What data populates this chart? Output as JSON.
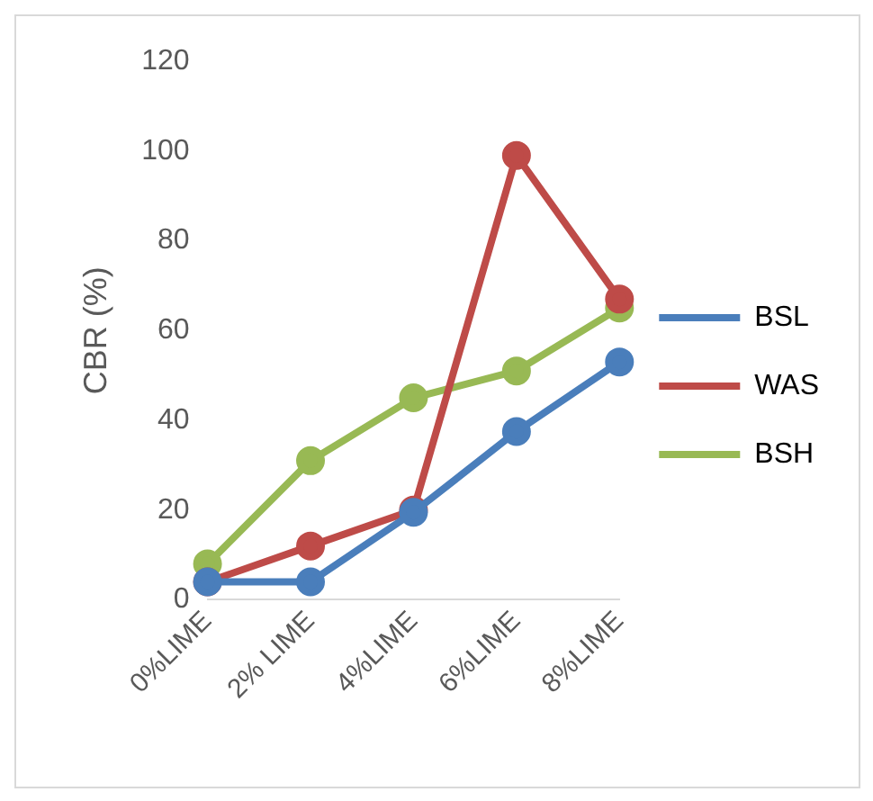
{
  "chart_data": {
    "type": "line",
    "ylabel": "CBR (%)",
    "categories": [
      "0%LIME",
      "2% LIME",
      "4%LIME",
      "6%LIME",
      "8%LIME"
    ],
    "series": [
      {
        "name": "BSL",
        "color": "#4a7ebb",
        "values": [
          4,
          4,
          19.5,
          37.5,
          53
        ]
      },
      {
        "name": "WAS",
        "color": "#be4b48",
        "values": [
          4,
          12,
          20,
          99,
          67
        ]
      },
      {
        "name": "BSH",
        "color": "#98b954",
        "values": [
          8,
          31,
          45,
          51,
          65
        ]
      }
    ],
    "ylim": [
      0,
      120
    ],
    "yticks": [
      0,
      20,
      40,
      60,
      80,
      100,
      120
    ],
    "grid": false,
    "legend": "right",
    "marker": "circle",
    "line_style": "solid"
  }
}
